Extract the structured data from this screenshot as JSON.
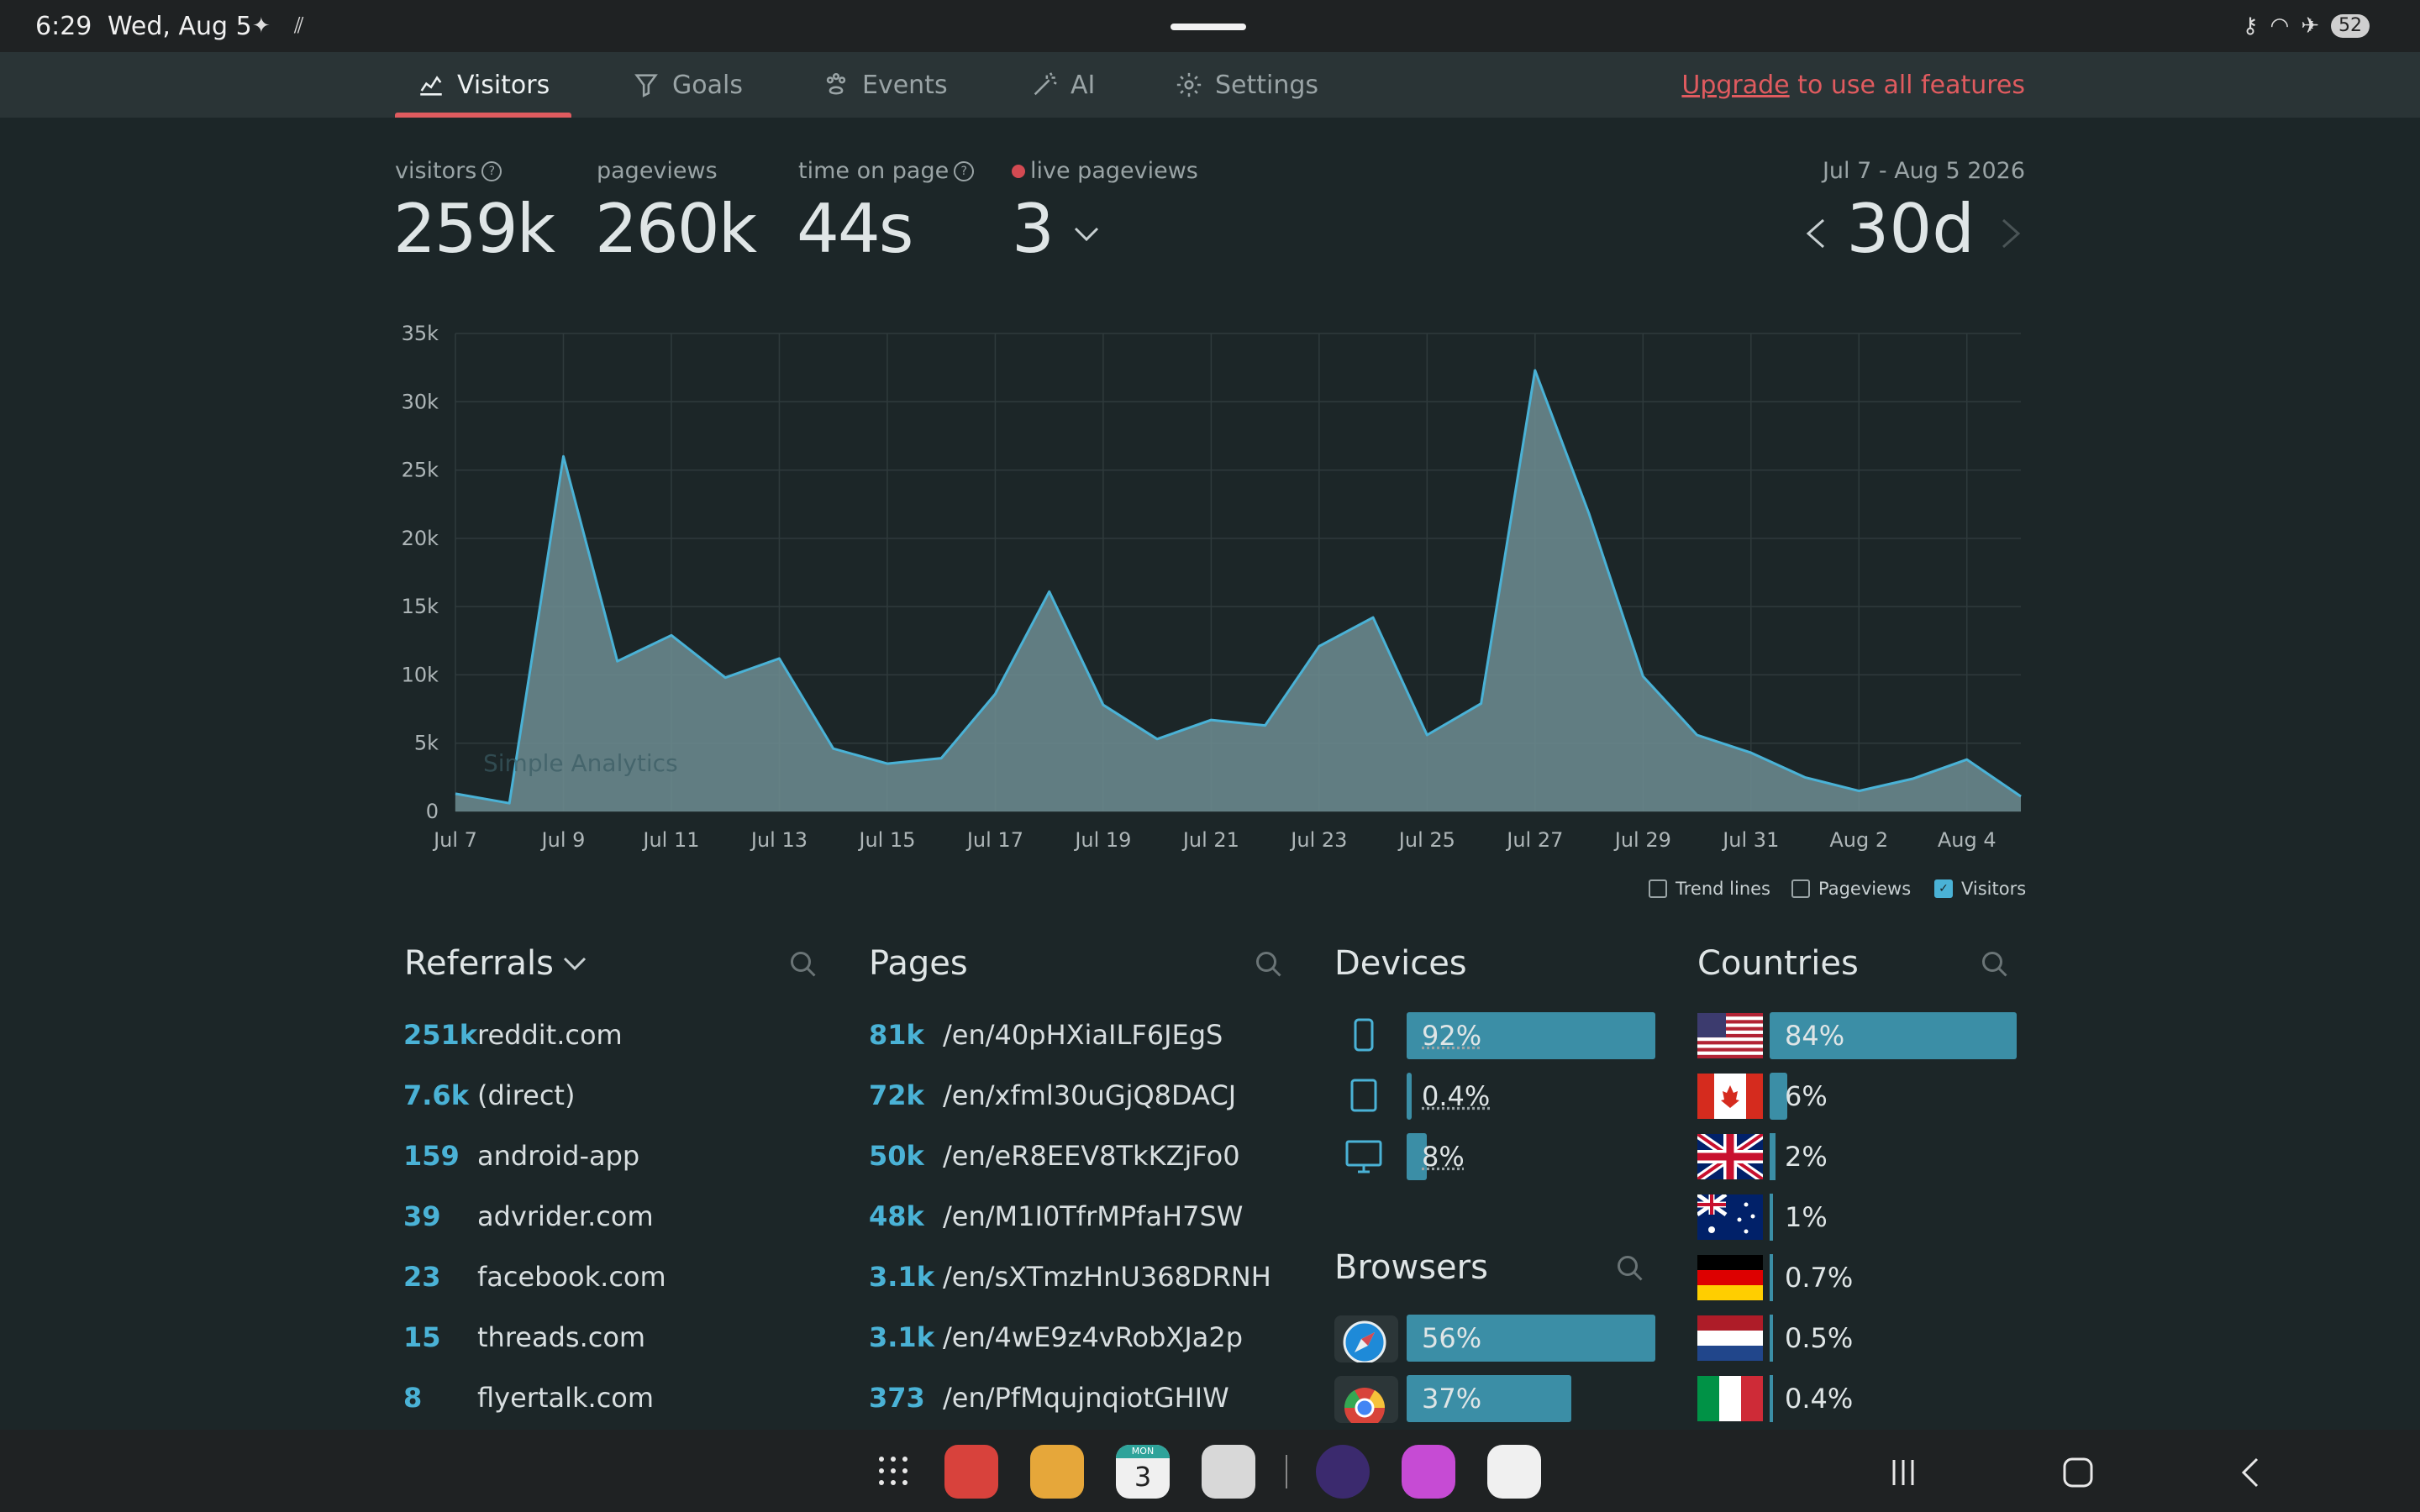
{
  "status_bar": {
    "time": "6:29",
    "date": "Wed, Aug 5",
    "battery": "52"
  },
  "tabs": [
    {
      "label": "Visitors",
      "icon": "chart-icon",
      "active": true
    },
    {
      "label": "Goals",
      "icon": "funnel-icon",
      "active": false
    },
    {
      "label": "Events",
      "icon": "paw-icon",
      "active": false
    },
    {
      "label": "AI",
      "icon": "magic-wand-icon",
      "active": false
    },
    {
      "label": "Settings",
      "icon": "gear-icon",
      "active": false
    }
  ],
  "upgrade": {
    "link": "Upgrade",
    "rest": " to use all features"
  },
  "stats": {
    "visitors_label": "visitors",
    "visitors": "259k",
    "pageviews_label": "pageviews",
    "pageviews": "260k",
    "time_label": "time on page",
    "time": "44s",
    "live_label": "live pageviews",
    "live": "3"
  },
  "date_range": "Jul 7 - Aug 5 2026",
  "period": "30d",
  "watermark": "Simple Analytics",
  "chart_data": {
    "type": "area",
    "series": [
      {
        "name": "Visitors",
        "x": [
          "Jul 7",
          "Jul 8",
          "Jul 9",
          "Jul 10",
          "Jul 11",
          "Jul 12",
          "Jul 13",
          "Jul 14",
          "Jul 15",
          "Jul 16",
          "Jul 17",
          "Jul 18",
          "Jul 19",
          "Jul 20",
          "Jul 21",
          "Jul 22",
          "Jul 23",
          "Jul 24",
          "Jul 25",
          "Jul 26",
          "Jul 27",
          "Jul 28",
          "Jul 29",
          "Jul 30",
          "Jul 31",
          "Aug 1",
          "Aug 2",
          "Aug 3",
          "Aug 4",
          "Aug 5"
        ],
        "values": [
          1300,
          600,
          26000,
          11000,
          12900,
          9800,
          11200,
          4600,
          3500,
          3900,
          8600,
          16100,
          7800,
          5300,
          6700,
          6300,
          12100,
          14200,
          5600,
          7900,
          32300,
          21800,
          9900,
          5600,
          4300,
          2500,
          1500,
          2400,
          3800,
          1100
        ]
      }
    ],
    "x_tick_labels": [
      "Jul 7",
      "Jul 9",
      "Jul 11",
      "Jul 13",
      "Jul 15",
      "Jul 17",
      "Jul 19",
      "Jul 21",
      "Jul 23",
      "Jul 25",
      "Jul 27",
      "Jul 29",
      "Jul 31",
      "Aug 2",
      "Aug 4"
    ],
    "y_tick_labels": [
      "0",
      "5k",
      "10k",
      "15k",
      "20k",
      "25k",
      "30k",
      "35k"
    ],
    "ylim": [
      0,
      35000
    ],
    "grid": true,
    "colors": {
      "fill": "#6d8d92",
      "stroke": "#4ab2d6"
    }
  },
  "legend": [
    {
      "label": "Trend lines",
      "checked": false
    },
    {
      "label": "Pageviews",
      "checked": false
    },
    {
      "label": "Visitors",
      "checked": true
    }
  ],
  "referrals": {
    "title": "Referrals",
    "rows": [
      {
        "count": "251k",
        "name": "reddit.com"
      },
      {
        "count": "7.6k",
        "name": "(direct)"
      },
      {
        "count": "159",
        "name": "android-app"
      },
      {
        "count": "39",
        "name": "advrider.com"
      },
      {
        "count": "23",
        "name": "facebook.com"
      },
      {
        "count": "15",
        "name": "threads.com"
      },
      {
        "count": "8",
        "name": "flyertalk.com"
      }
    ]
  },
  "pages": {
    "title": "Pages",
    "rows": [
      {
        "count": "81k",
        "name": "/en/40pHXiaILF6JEgS"
      },
      {
        "count": "72k",
        "name": "/en/xfml30uGjQ8DACJ"
      },
      {
        "count": "50k",
        "name": "/en/eR8EEV8TkKZjFo0"
      },
      {
        "count": "48k",
        "name": "/en/M1I0TfrMPfaH7SW"
      },
      {
        "count": "3.1k",
        "name": "/en/sXTmzHnU368DRNH"
      },
      {
        "count": "3.1k",
        "name": "/en/4wE9z4vRobXJa2p"
      },
      {
        "count": "373",
        "name": "/en/PfMqujnqiotGHIW"
      }
    ]
  },
  "devices": {
    "title": "Devices",
    "rows": [
      {
        "icon": "phone-icon",
        "pct": "92%",
        "fraction": 0.92
      },
      {
        "icon": "tablet-icon",
        "pct": "0.4%",
        "fraction": 0.004
      },
      {
        "icon": "desktop-icon",
        "pct": "8%",
        "fraction": 0.08
      }
    ]
  },
  "browsers": {
    "title": "Browsers",
    "rows": [
      {
        "icon": "safari-icon",
        "pct": "56%",
        "fraction": 0.56
      },
      {
        "icon": "chrome-icon",
        "pct": "37%",
        "fraction": 0.37
      }
    ]
  },
  "countries": {
    "title": "Countries",
    "rows": [
      {
        "flag": "us-flag-icon",
        "pct": "84%",
        "fraction": 0.84
      },
      {
        "flag": "ca-flag-icon",
        "pct": "6%",
        "fraction": 0.06
      },
      {
        "flag": "gb-flag-icon",
        "pct": "2%",
        "fraction": 0.02
      },
      {
        "flag": "au-flag-icon",
        "pct": "1%",
        "fraction": 0.01
      },
      {
        "flag": "de-flag-icon",
        "pct": "0.7%",
        "fraction": 0.007
      },
      {
        "flag": "nl-flag-icon",
        "pct": "0.5%",
        "fraction": 0.005
      },
      {
        "flag": "it-flag-icon",
        "pct": "0.4%",
        "fraction": 0.004
      }
    ]
  },
  "dock": {
    "calendar_day": "MON",
    "calendar_date": "3"
  }
}
